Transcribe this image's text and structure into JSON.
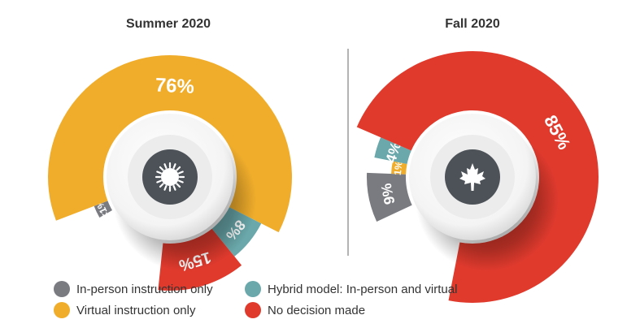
{
  "chart_data": [
    {
      "type": "pie",
      "title": "Summer 2020",
      "categories": [
        "In-person instruction only",
        "Virtual instruction only",
        "Hybrid model: In-person and virtual",
        "No decision made"
      ],
      "values": [
        1,
        76,
        8,
        15
      ],
      "labels": [
        "<1%",
        "76%",
        "8%",
        "15%"
      ],
      "icon": "sun-icon"
    },
    {
      "type": "pie",
      "title": "Fall 2020",
      "categories": [
        "In-person instruction only",
        "Virtual instruction only",
        "Hybrid model: In-person and virtual",
        "No decision made"
      ],
      "values": [
        9,
        1,
        4,
        85
      ],
      "labels": [
        "9%",
        "1%",
        "4%",
        "85%"
      ],
      "icon": "maple-leaf-icon"
    }
  ],
  "legend": [
    {
      "label": "In-person instruction only",
      "color": "#7a7b80"
    },
    {
      "label": "Virtual instruction only",
      "color": "#f0ad2b"
    },
    {
      "label": "Hybrid model: In-person and virtual",
      "color": "#6aa8ab"
    },
    {
      "label": "No decision made",
      "color": "#e03a2d"
    }
  ]
}
